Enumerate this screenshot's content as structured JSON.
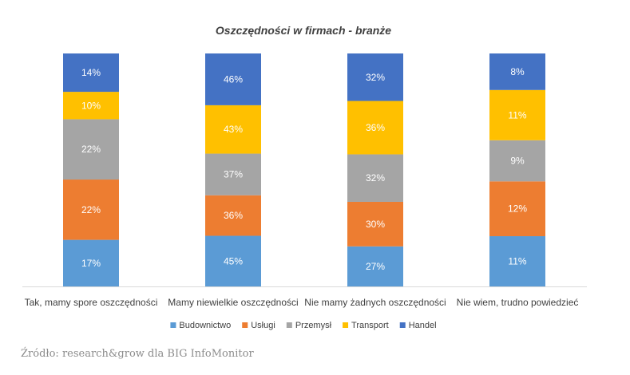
{
  "chart_data": {
    "type": "bar",
    "stacked": true,
    "title": "Oszczędności w firmach - branże",
    "categories": [
      "Tak, mamy spore oszczędności",
      "Mamy niewielkie oszczędności",
      "Nie mamy żadnych oszczędności",
      "Nie wiem, trudno powiedzieć"
    ],
    "series": [
      {
        "name": "Budownictwo",
        "color": "#5b9bd5",
        "values": [
          17,
          45,
          27,
          11
        ]
      },
      {
        "name": "Usługi",
        "color": "#ed7d31",
        "values": [
          22,
          36,
          30,
          12
        ]
      },
      {
        "name": "Przemysł",
        "color": "#a5a5a5",
        "values": [
          22,
          37,
          32,
          9
        ]
      },
      {
        "name": "Transport",
        "color": "#ffc000",
        "values": [
          10,
          43,
          36,
          11
        ]
      },
      {
        "name": "Handel",
        "color": "#4472c4",
        "values": [
          14,
          46,
          32,
          8
        ]
      }
    ],
    "value_suffix": "%",
    "label_colors": {
      "Budownictwo": "#ffffff",
      "Usługi": "#ffffff",
      "Przemysł": "#ffffff",
      "Transport": "#ffffff",
      "Handel": "#ffffff"
    },
    "legend_position": "bottom",
    "gridlines": false
  },
  "source_note": "Źródło: research&grow dla BIG InfoMonitor"
}
